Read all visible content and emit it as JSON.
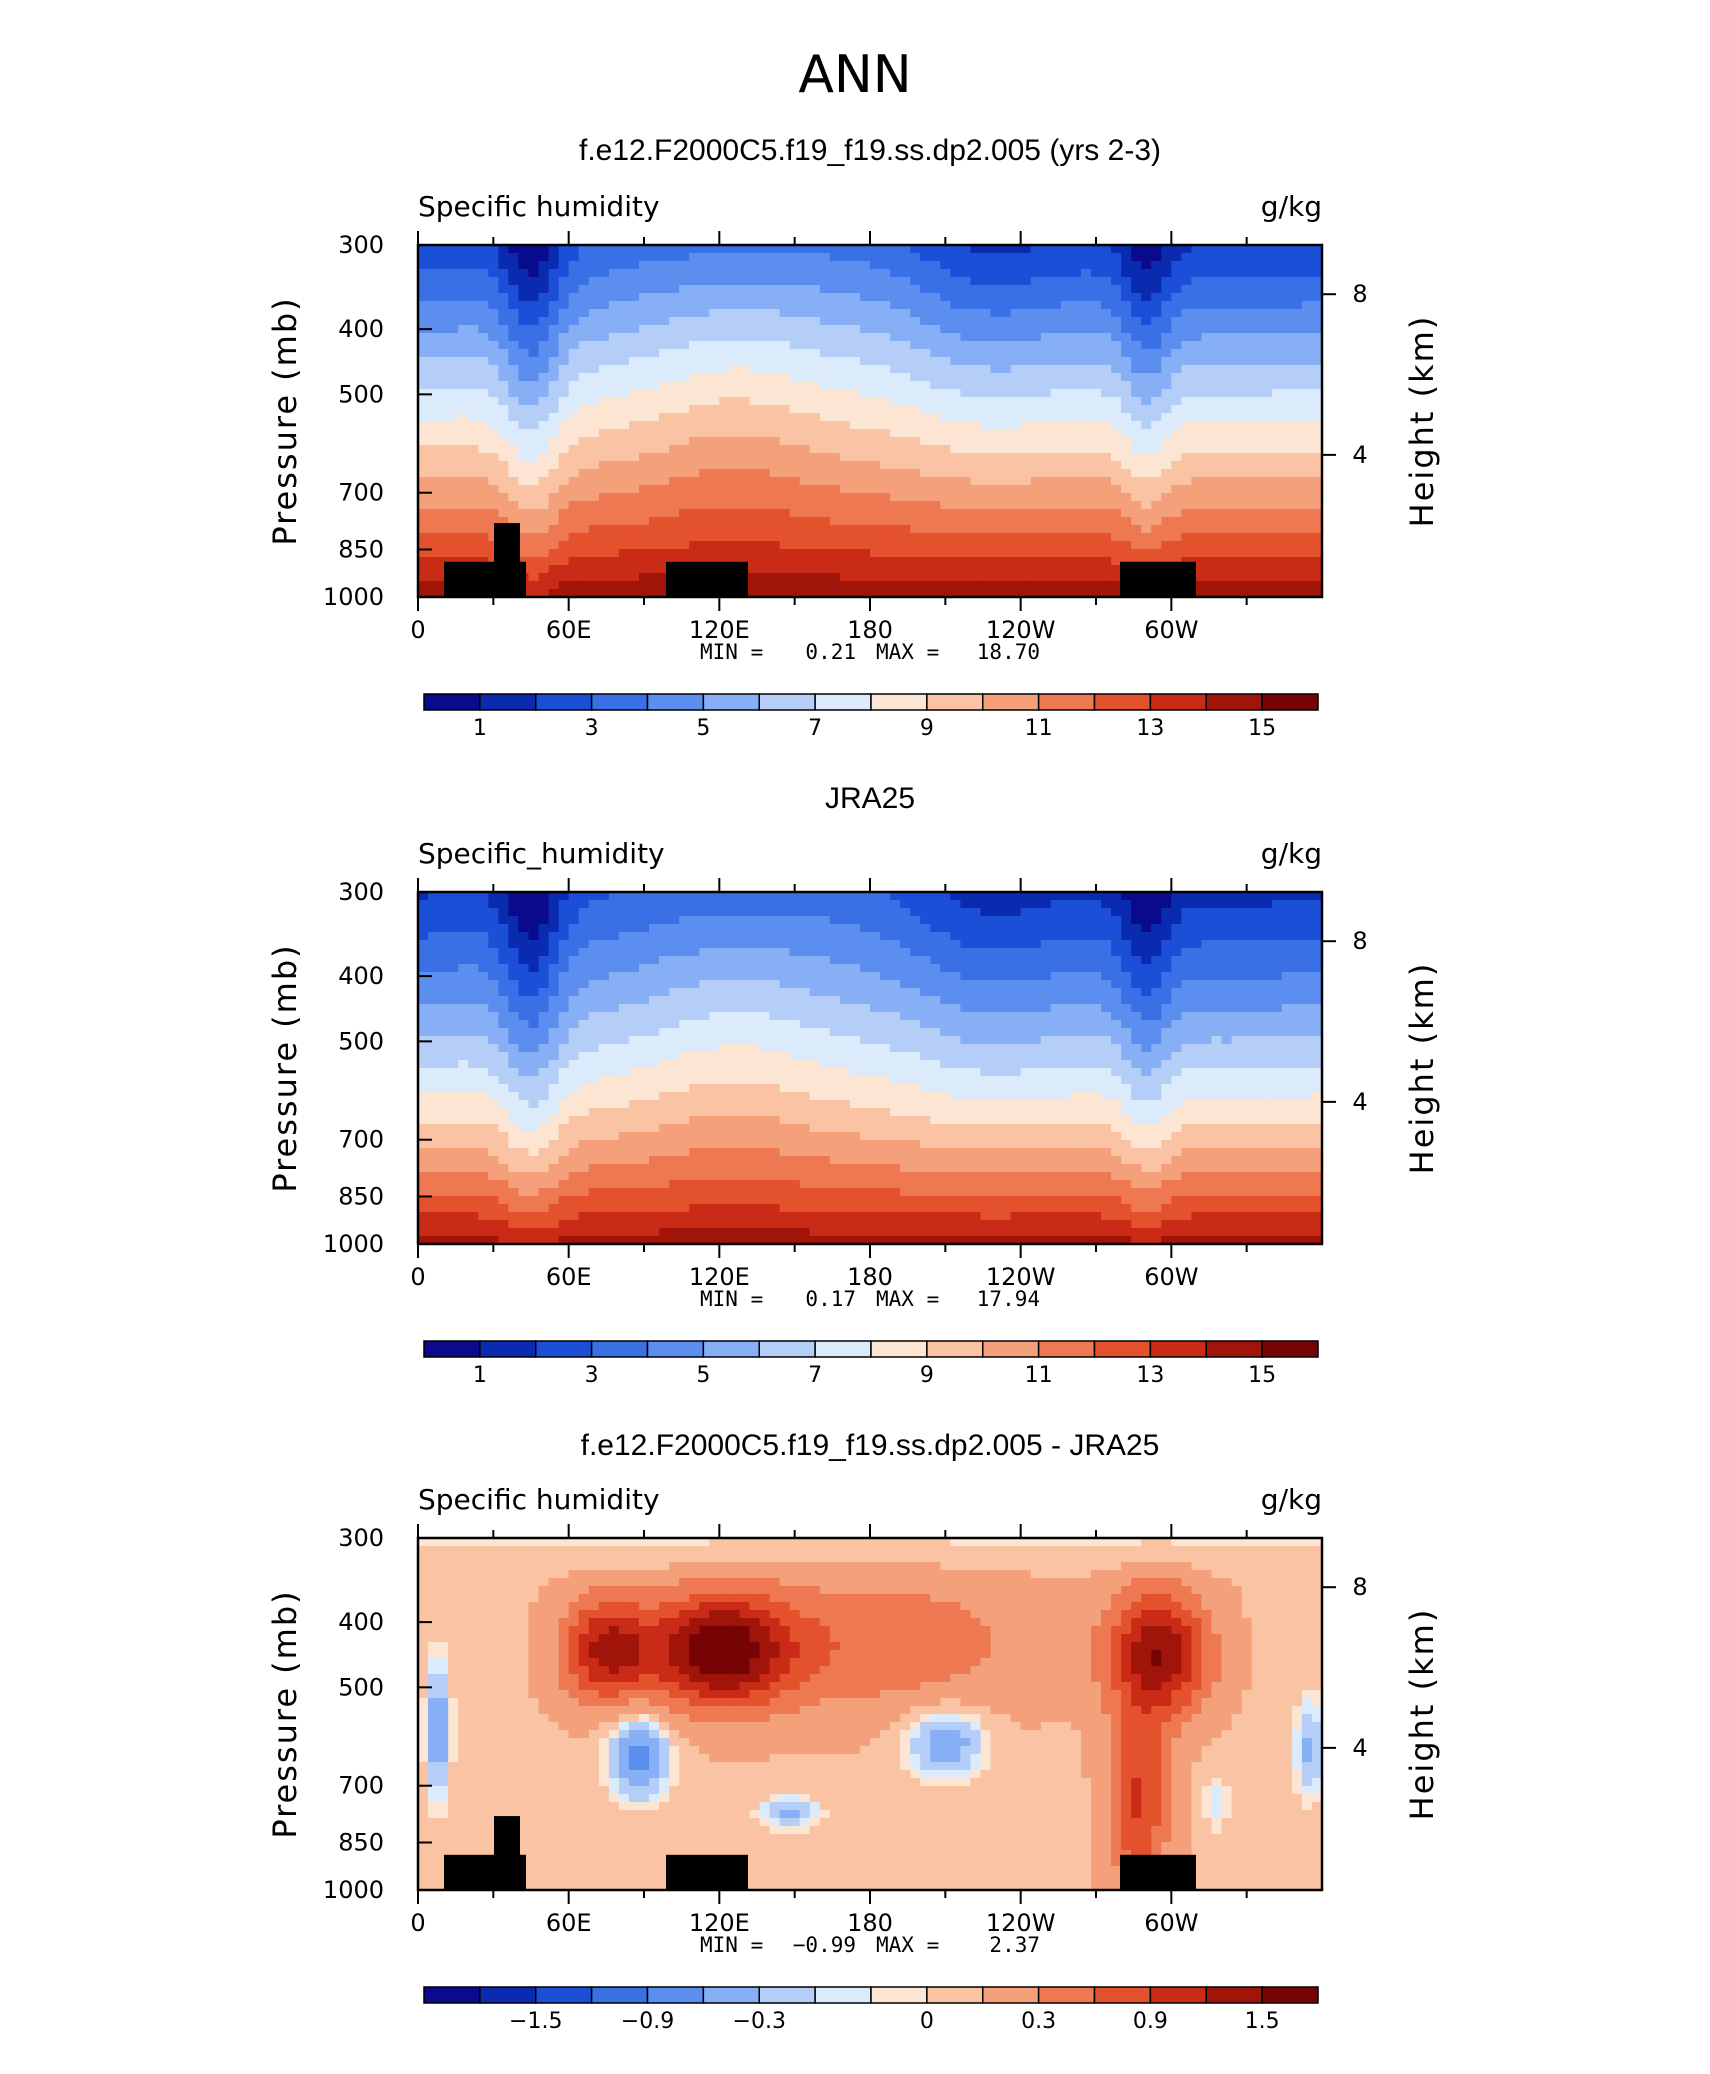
{
  "figure": {
    "title": "ANN"
  },
  "colors": {
    "palette": [
      "#0a0a8c",
      "#0a2ab0",
      "#1c4fd8",
      "#3a70e6",
      "#5c8ef0",
      "#86aff5",
      "#b4cef8",
      "#dcebfb",
      "#fde5d3",
      "#f9c3a4",
      "#f4a07b",
      "#ee7851",
      "#e4512d",
      "#c92b17",
      "#a11409",
      "#760404"
    ],
    "mask": "#000000",
    "frame": "#000000"
  },
  "chart_data": [
    {
      "type": "heatmap",
      "title": "f.e12.F2000C5.f19_f19.ss.dp2.005 (yrs 2-3)",
      "left_label": "Specific humidity",
      "right_label": "g/kg",
      "xlabel": "",
      "ylabel": "Pressure (mb)",
      "ylabel_right": "Height (km)",
      "x_ticks": [
        "0",
        "60E",
        "120E",
        "180",
        "120W",
        "60W"
      ],
      "y_ticks": [
        "300",
        "400",
        "500",
        "700",
        "850",
        "1000"
      ],
      "y_ticks_right": [
        "8",
        "4"
      ],
      "ylim": [
        1000,
        300
      ],
      "min": "0.21",
      "max": "18.70",
      "min_label": "MIN =",
      "max_label": "MAX =",
      "colorbar_ticks": [
        "1",
        "3",
        "5",
        "7",
        "9",
        "11",
        "13",
        "15"
      ],
      "kind": "abs",
      "masked": true
    },
    {
      "type": "heatmap",
      "title": "JRA25",
      "left_label": "Specific_humidity",
      "right_label": "g/kg",
      "xlabel": "",
      "ylabel": "Pressure (mb)",
      "ylabel_right": "Height (km)",
      "x_ticks": [
        "0",
        "60E",
        "120E",
        "180",
        "120W",
        "60W"
      ],
      "y_ticks": [
        "300",
        "400",
        "500",
        "700",
        "850",
        "1000"
      ],
      "y_ticks_right": [
        "8",
        "4"
      ],
      "ylim": [
        1000,
        300
      ],
      "min": "0.17",
      "max": "17.94",
      "min_label": "MIN =",
      "max_label": "MAX =",
      "colorbar_ticks": [
        "1",
        "3",
        "5",
        "7",
        "9",
        "11",
        "13",
        "15"
      ],
      "kind": "abs",
      "masked": false
    },
    {
      "type": "heatmap",
      "title": "f.e12.F2000C5.f19_f19.ss.dp2.005 - JRA25",
      "left_label": "Specific humidity",
      "right_label": "g/kg",
      "xlabel": "",
      "ylabel": "Pressure (mb)",
      "ylabel_right": "Height (km)",
      "x_ticks": [
        "0",
        "60E",
        "120E",
        "180",
        "120W",
        "60W"
      ],
      "y_ticks": [
        "300",
        "400",
        "500",
        "700",
        "850",
        "1000"
      ],
      "y_ticks_right": [
        "8",
        "4"
      ],
      "ylim": [
        1000,
        300
      ],
      "min": "−0.99",
      "max": "2.37",
      "min_label": "MIN =",
      "max_label": "MAX =",
      "colorbar_ticks": [
        "−1.5",
        "−0.9",
        "−0.3",
        "0",
        "0.3",
        "0.9",
        "1.5"
      ],
      "kind": "diff",
      "masked": true
    }
  ]
}
